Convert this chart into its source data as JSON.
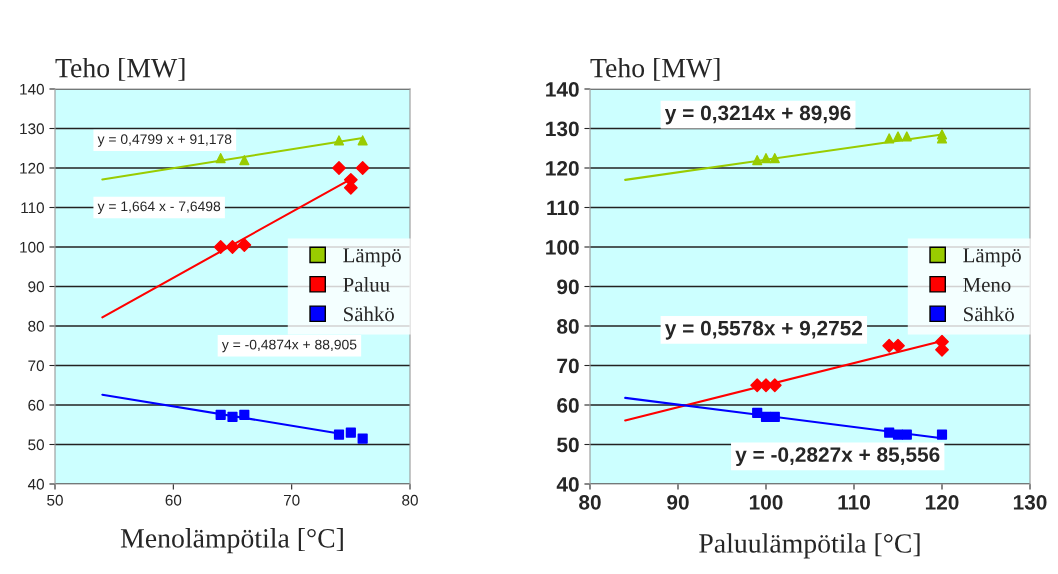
{
  "chart_data": [
    {
      "type": "scatter",
      "ylabel": "Teho [MW]",
      "xlabel": "Menolämpötila [°C]",
      "xlim": [
        50,
        80
      ],
      "xticks": [
        50,
        60,
        70,
        80
      ],
      "ylim": [
        40,
        140
      ],
      "yticks": [
        40,
        50,
        60,
        70,
        80,
        90,
        100,
        110,
        120,
        130,
        140
      ],
      "grid": "y",
      "legend": "right",
      "series": [
        {
          "name": "Lämpö",
          "color": "#99cc00",
          "marker": "triangle",
          "x": [
            64,
            66,
            74,
            76
          ],
          "values": [
            122.5,
            122,
            127,
            127
          ]
        },
        {
          "name": "Paluu",
          "color": "#ff0000",
          "marker": "diamond",
          "x": [
            64,
            65,
            66,
            74,
            75,
            75,
            76
          ],
          "values": [
            100,
            100,
            100.5,
            120,
            115,
            117,
            120
          ]
        },
        {
          "name": "Sähkö",
          "color": "#0000ff",
          "marker": "square",
          "x": [
            64,
            65,
            66,
            74,
            75,
            76
          ],
          "values": [
            57.5,
            57,
            57.5,
            52.5,
            53,
            51.5
          ]
        },
        {
          "type": "line",
          "color": "#99cc00",
          "marker": "none",
          "x": [
            54,
            76
          ],
          "values": [
            117.1,
            127.6
          ]
        },
        {
          "type": "line",
          "color": "#ff0000",
          "marker": "none",
          "x": [
            54,
            75
          ],
          "values": [
            82.2,
            117.2
          ]
        },
        {
          "type": "line",
          "color": "#0000ff",
          "marker": "none",
          "x": [
            54,
            74
          ],
          "values": [
            62.6,
            52.8
          ]
        }
      ],
      "annotations": [
        "y = 0,4799 x + 91,178",
        "y = 1,664 x - 7,6498",
        "y = -0,4874x + 88,905"
      ]
    },
    {
      "type": "scatter",
      "ylabel": "Teho [MW]",
      "xlabel": "Paluulämpötila [°C]",
      "xlim": [
        80,
        130
      ],
      "xticks": [
        80,
        90,
        100,
        110,
        120,
        130
      ],
      "ylim": [
        40,
        140
      ],
      "yticks": [
        40,
        50,
        60,
        70,
        80,
        90,
        100,
        110,
        120,
        130,
        140
      ],
      "grid": "y",
      "legend": "right",
      "series": [
        {
          "name": "Lämpö",
          "color": "#99cc00",
          "marker": "triangle",
          "x": [
            99,
            100,
            101,
            114,
            115,
            116,
            120,
            120
          ],
          "values": [
            122,
            122.5,
            122.5,
            127.5,
            128,
            128,
            128.5,
            127.5
          ]
        },
        {
          "name": "Meno",
          "color": "#ff0000",
          "marker": "diamond",
          "x": [
            99,
            100,
            101,
            114,
            115,
            120,
            120
          ],
          "values": [
            65,
            65,
            65,
            75,
            75,
            76,
            74
          ]
        },
        {
          "name": "Sähkö",
          "color": "#0000ff",
          "marker": "square",
          "x": [
            99,
            100,
            101,
            114,
            115,
            116,
            120
          ],
          "values": [
            58,
            57,
            57,
            53,
            52.5,
            52.5,
            52.5
          ]
        },
        {
          "type": "line",
          "color": "#99cc00",
          "marker": "none",
          "x": [
            84,
            120
          ],
          "values": [
            117,
            128.5
          ]
        },
        {
          "type": "line",
          "color": "#ff0000",
          "marker": "none",
          "x": [
            84,
            120
          ],
          "values": [
            56.1,
            76.2
          ]
        },
        {
          "type": "line",
          "color": "#0000ff",
          "marker": "none",
          "x": [
            84,
            120
          ],
          "values": [
            61.8,
            51.6
          ]
        }
      ],
      "annotations": [
        "y = 0,3214x + 89,96",
        "y = 0,5578x + 9,2752",
        "y = -0,2827x + 85,556"
      ]
    }
  ]
}
